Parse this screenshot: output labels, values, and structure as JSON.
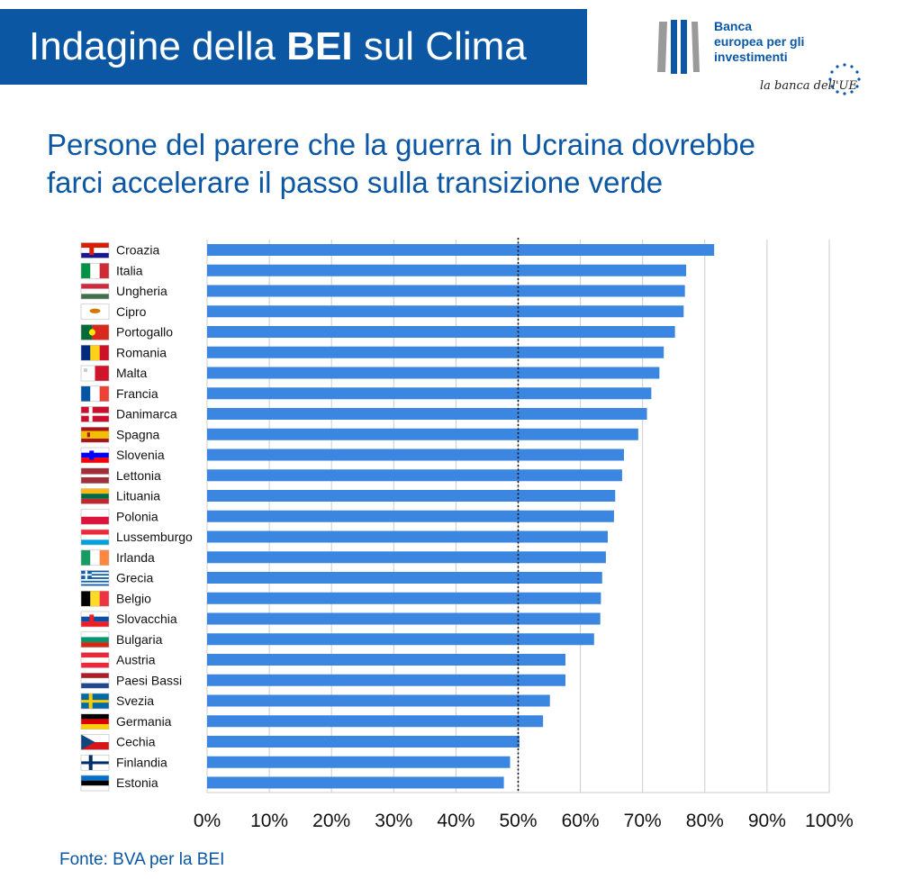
{
  "header": {
    "title_pre": "Indagine della ",
    "title_bold": "BEI",
    "title_post": " sul Clima"
  },
  "logo": {
    "line1": "Banca",
    "line2": "europea per gli",
    "line3": "investimenti",
    "tagline": "la banca dell'UE"
  },
  "subtitle": {
    "line1": "Persone del parere che la guerra in Ucraina dovrebbe",
    "line2": "farci accelerare il passo sulla transizione verde"
  },
  "source": "Fonte: BVA per la BEI",
  "colors": {
    "brand": "#0b57a4",
    "bar": "#3b86e0",
    "grid": "#cccccc"
  },
  "chart_data": {
    "type": "bar",
    "orientation": "horizontal",
    "categories": [
      "Croazia",
      "Italia",
      "Ungheria",
      "Cipro",
      "Portogallo",
      "Romania",
      "Malta",
      "Francia",
      "Danimarca",
      "Spagna",
      "Slovenia",
      "Lettonia",
      "Lituania",
      "Polonia",
      "Lussemburgo",
      "Irlanda",
      "Grecia",
      "Belgio",
      "Slovacchia",
      "Bulgaria",
      "Austria",
      "Paesi Bassi",
      "Svezia",
      "Germania",
      "Cechia",
      "Finlandia",
      "Estonia"
    ],
    "values": [
      81.5,
      77,
      76.8,
      76.6,
      75.2,
      73.4,
      72.7,
      71.4,
      70.7,
      69.3,
      67,
      66.7,
      65.6,
      65.4,
      64.4,
      64.1,
      63.5,
      63.3,
      63.2,
      62.2,
      57.6,
      57.6,
      55.1,
      54,
      50.2,
      48.7,
      47.7
    ],
    "xlim": [
      0,
      100
    ],
    "xticks": [
      0,
      10,
      20,
      30,
      40,
      50,
      60,
      70,
      80,
      90,
      100
    ],
    "tick_suffix": "%",
    "reference_line": 50,
    "grid": true,
    "flags": [
      {
        "type": "h",
        "colors": [
          "#d81e05",
          "#ffffff",
          "#171796"
        ],
        "emblem": "#d81e05"
      },
      {
        "type": "v",
        "colors": [
          "#009246",
          "#ffffff",
          "#ce2b37"
        ]
      },
      {
        "type": "h",
        "colors": [
          "#cd2a3e",
          "#ffffff",
          "#436f4d"
        ]
      },
      {
        "type": "solid",
        "colors": [
          "#ffffff"
        ],
        "emblem": "#d57800"
      },
      {
        "type": "vp",
        "colors": [
          "#046a38",
          "#da291c"
        ],
        "emblem": "#ffe900"
      },
      {
        "type": "v",
        "colors": [
          "#002b7f",
          "#fcd116",
          "#ce1126"
        ]
      },
      {
        "type": "v2",
        "colors": [
          "#ffffff",
          "#cf142b"
        ],
        "emblem": "#cccccc"
      },
      {
        "type": "v",
        "colors": [
          "#0055a4",
          "#ffffff",
          "#ef4135"
        ]
      },
      {
        "type": "cross",
        "colors": [
          "#c8102e",
          "#ffffff"
        ]
      },
      {
        "type": "es",
        "colors": [
          "#aa151b",
          "#f1bf00"
        ]
      },
      {
        "type": "h",
        "colors": [
          "#ffffff",
          "#0000ff",
          "#ff0000"
        ],
        "emblem": "#0000ff"
      },
      {
        "type": "lv",
        "colors": [
          "#9e3039",
          "#ffffff"
        ]
      },
      {
        "type": "h",
        "colors": [
          "#fdb913",
          "#006a44",
          "#c1272d"
        ]
      },
      {
        "type": "h2",
        "colors": [
          "#ffffff",
          "#dc143c"
        ]
      },
      {
        "type": "h",
        "colors": [
          "#ed2939",
          "#ffffff",
          "#00a1de"
        ]
      },
      {
        "type": "v",
        "colors": [
          "#169b62",
          "#ffffff",
          "#ff883e"
        ]
      },
      {
        "type": "gr",
        "colors": [
          "#0d5eaf",
          "#ffffff"
        ]
      },
      {
        "type": "v",
        "colors": [
          "#000000",
          "#fdda24",
          "#ef3340"
        ]
      },
      {
        "type": "h",
        "colors": [
          "#ffffff",
          "#0b4ea2",
          "#ee1c25"
        ],
        "emblem": "#ee1c25"
      },
      {
        "type": "h",
        "colors": [
          "#ffffff",
          "#00966e",
          "#d62612"
        ]
      },
      {
        "type": "h",
        "colors": [
          "#ed2939",
          "#ffffff",
          "#ed2939"
        ]
      },
      {
        "type": "h",
        "colors": [
          "#ae1c28",
          "#ffffff",
          "#21468b"
        ]
      },
      {
        "type": "cross",
        "colors": [
          "#006aa7",
          "#fecc00"
        ]
      },
      {
        "type": "h",
        "colors": [
          "#000000",
          "#dd0000",
          "#ffce00"
        ]
      },
      {
        "type": "cz",
        "colors": [
          "#ffffff",
          "#d7141a",
          "#11457e"
        ]
      },
      {
        "type": "cross",
        "colors": [
          "#ffffff",
          "#002f6c"
        ]
      },
      {
        "type": "h",
        "colors": [
          "#0072ce",
          "#000000",
          "#ffffff"
        ]
      }
    ]
  }
}
